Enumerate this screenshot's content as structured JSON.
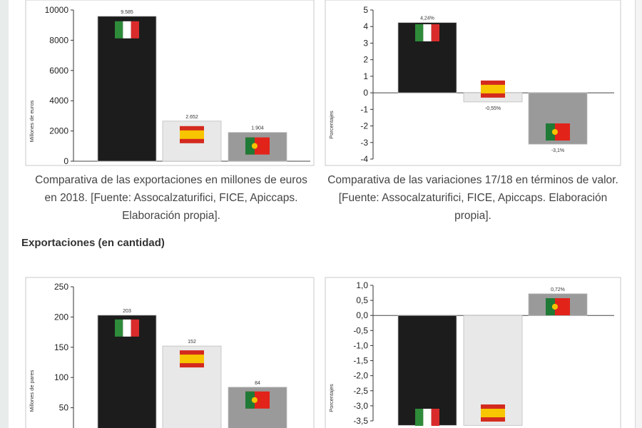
{
  "chart_data": [
    {
      "type": "bar",
      "categories": [
        "Italia",
        "España",
        "Portugal"
      ],
      "values": [
        9585,
        2652,
        1904
      ],
      "value_labels": [
        "9.585",
        "2.652",
        "1.904"
      ],
      "ylabel": "Millones de euros",
      "ylim": [
        0,
        10000
      ],
      "yticks": [
        "0",
        "2000",
        "4000",
        "6000",
        "8000",
        "10000"
      ],
      "colors": [
        "#1c1c1c",
        "#e8e8e8",
        "#9a9a9a"
      ],
      "caption": "Comparativa de las exportaciones en millones de euros en 2018. [Fuente: Assocalzaturifici, FICE, Apiccaps. Elaboración propia]."
    },
    {
      "type": "bar",
      "categories": [
        "Italia",
        "España",
        "Portugal"
      ],
      "values": [
        4.24,
        -0.55,
        -3.1
      ],
      "value_labels": [
        "4,24%",
        "-0,55%",
        "-3,1%"
      ],
      "ylabel": "Porcentajes",
      "ylim": [
        -4,
        5
      ],
      "yticks": [
        "-4",
        "-3",
        "-2",
        "-1",
        "0",
        "1",
        "2",
        "3",
        "4",
        "5"
      ],
      "colors": [
        "#1c1c1c",
        "#e8e8e8",
        "#9a9a9a"
      ],
      "caption": "Comparativa de las variaciones 17/18 en términos de valor. [Fuente: Assocalzaturifici, FICE, Apiccaps. Elaboración propia]."
    },
    {
      "type": "bar",
      "categories": [
        "Italia",
        "España",
        "Portugal"
      ],
      "values": [
        203,
        152,
        84
      ],
      "value_labels": [
        "203",
        "152",
        "84"
      ],
      "ylabel": "Millones de pares",
      "ylim": [
        0,
        250
      ],
      "yticks": [
        "50",
        "100",
        "150",
        "200",
        "250"
      ],
      "colors": [
        "#1c1c1c",
        "#e8e8e8",
        "#9a9a9a"
      ]
    },
    {
      "type": "bar",
      "categories": [
        "Italia",
        "España",
        "Portugal"
      ],
      "values": [
        null,
        null,
        0.72
      ],
      "value_labels": [
        "",
        "",
        "0,72%"
      ],
      "ylabel": "Porcentajes",
      "ylim": [
        -3.5,
        1.0
      ],
      "yticks": [
        "-3,5",
        "-3,0",
        "-2,5",
        "-2,0",
        "-1,5",
        "-1,0",
        "-0,5",
        "0,0",
        "0,5",
        "1,0"
      ],
      "colors": [
        "#1c1c1c",
        "#e8e8e8",
        "#9a9a9a"
      ]
    }
  ],
  "section_heading": "Exportaciones (en cantidad)",
  "flags": [
    "italy-flag-icon",
    "spain-flag-icon",
    "portugal-flag-icon"
  ]
}
